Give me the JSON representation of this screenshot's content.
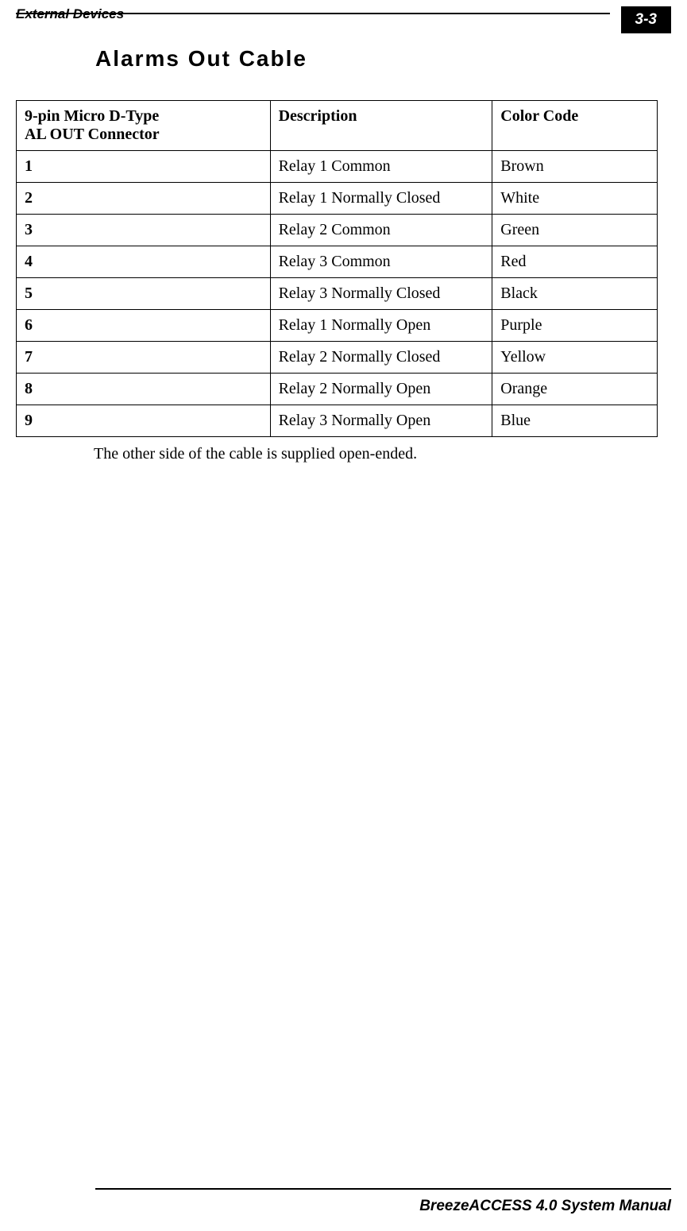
{
  "header": {
    "title": "External Devices",
    "page_number": "3-3"
  },
  "section": {
    "title": "Alarms Out Cable"
  },
  "table": {
    "headers": {
      "col1_line1": "9-pin Micro D-Type",
      "col1_line2": "AL OUT Connector",
      "col2": "Description",
      "col3": "Color Code"
    },
    "rows": [
      {
        "pin": "1",
        "description": "Relay 1 Common",
        "color": "Brown"
      },
      {
        "pin": "2",
        "description": "Relay 1 Normally Closed",
        "color": "White"
      },
      {
        "pin": "3",
        "description": "Relay 2 Common",
        "color": "Green"
      },
      {
        "pin": "4",
        "description": "Relay 3 Common",
        "color": "Red"
      },
      {
        "pin": "5",
        "description": "Relay 3 Normally Closed",
        "color": "Black"
      },
      {
        "pin": "6",
        "description": "Relay 1 Normally Open",
        "color": "Purple"
      },
      {
        "pin": "7",
        "description": "Relay 2 Normally Closed",
        "color": "Yellow"
      },
      {
        "pin": "8",
        "description": "Relay 2 Normally Open",
        "color": "Orange"
      },
      {
        "pin": "9",
        "description": "Relay 3 Normally Open",
        "color": "Blue"
      }
    ]
  },
  "note": "The other side of the cable is supplied open-ended.",
  "footer": {
    "text": "BreezeACCESS 4.0 System Manual"
  },
  "styles": {
    "background_color": "#ffffff",
    "text_color": "#000000",
    "border_color": "#000000",
    "page_box_bg": "#000000",
    "page_box_fg": "#ffffff"
  }
}
